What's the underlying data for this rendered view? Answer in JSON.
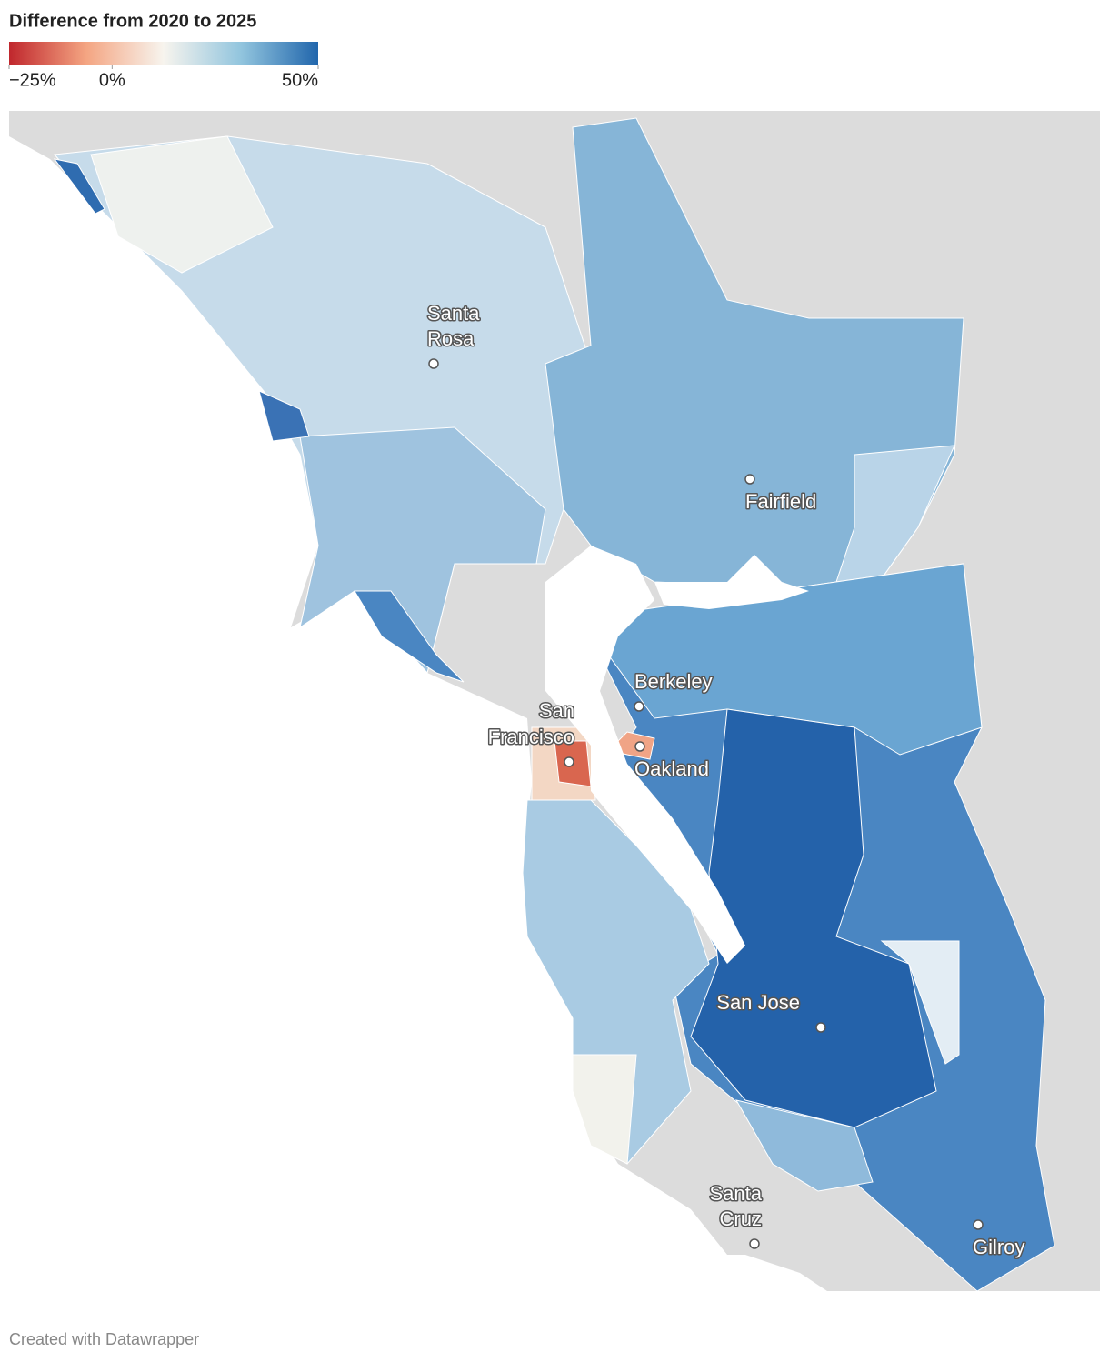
{
  "legend": {
    "title": "Difference from 2020 to 2025",
    "lim": [
      -25,
      50
    ],
    "ticks": [
      {
        "value": -25,
        "label": "−25%"
      },
      {
        "value": 0,
        "label": "0%"
      },
      {
        "value": 50,
        "label": "50%"
      }
    ],
    "colors": [
      "#c0272d",
      "#f4a582",
      "#f7f4ee",
      "#92c5de",
      "#2166ac"
    ]
  },
  "cities": [
    [
      "Santa",
      "Rosa"
    ],
    [
      "Fairfield"
    ],
    [
      "Berkeley"
    ],
    [
      "San",
      "Francisco"
    ],
    [
      "Oakland"
    ],
    [
      "San Jose"
    ],
    [
      "Santa",
      "Cruz"
    ],
    [
      "Gilroy"
    ]
  ],
  "footer": "Created with Datawrapper"
}
